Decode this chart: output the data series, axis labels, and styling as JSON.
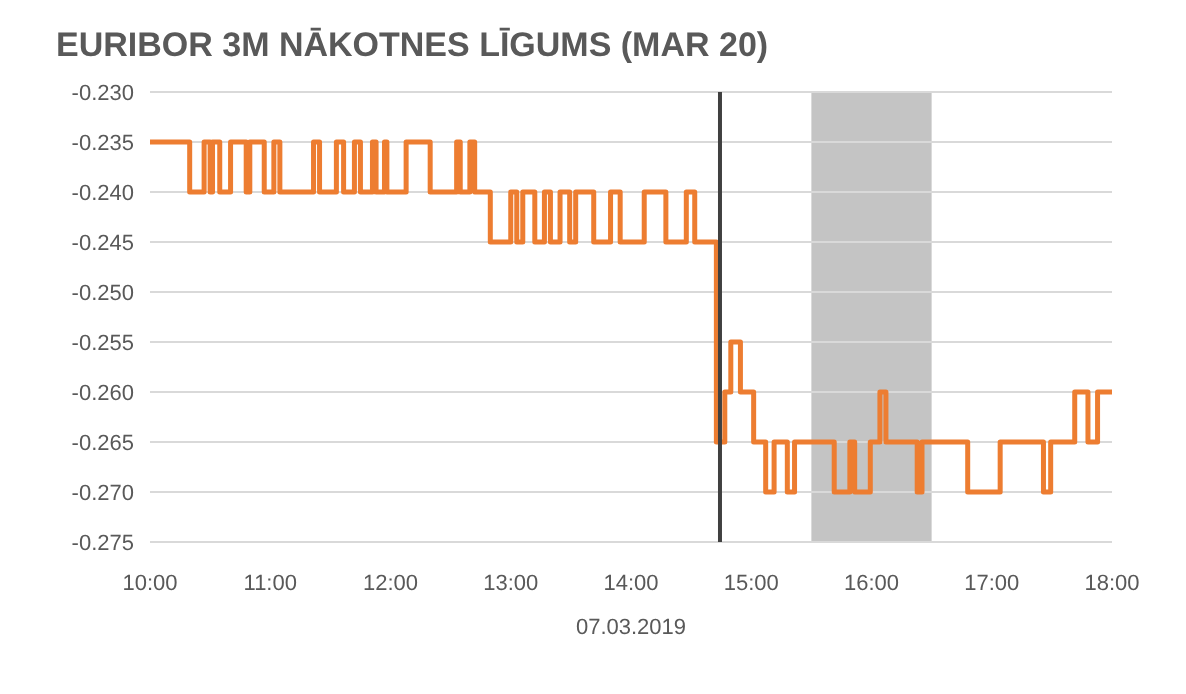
{
  "chart_data": {
    "type": "step",
    "title": "EURIBOR 3M NĀKOTNES LĪGUMS (MAR 20)",
    "xlabel": "07.03.2019",
    "x": [
      10.0,
      10.33,
      10.45,
      10.5,
      10.52,
      10.58,
      10.67,
      10.8,
      10.83,
      10.95,
      11.03,
      11.08,
      11.36,
      11.41,
      11.55,
      11.61,
      11.7,
      11.75,
      11.85,
      11.88,
      11.95,
      11.97,
      12.13,
      12.33,
      12.55,
      12.58,
      12.66,
      12.7,
      12.83,
      13.0,
      13.05,
      13.1,
      13.2,
      13.28,
      13.33,
      13.41,
      13.49,
      13.54,
      13.69,
      13.83,
      13.91,
      14.11,
      14.29,
      14.46,
      14.53,
      14.71,
      14.78,
      14.83,
      14.91,
      15.02,
      15.12,
      15.19,
      15.3,
      15.36,
      15.69,
      15.82,
      15.86,
      15.99,
      16.07,
      16.12,
      16.38,
      16.42,
      16.8,
      17.07,
      17.43,
      17.49,
      17.69,
      17.8,
      17.88,
      18.0
    ],
    "series": [
      {
        "color": "#ed7d31",
        "values": [
          -0.235,
          -0.24,
          -0.235,
          -0.24,
          -0.235,
          -0.24,
          -0.235,
          -0.24,
          -0.235,
          -0.24,
          -0.235,
          -0.24,
          -0.235,
          -0.24,
          -0.235,
          -0.24,
          -0.235,
          -0.24,
          -0.235,
          -0.24,
          -0.235,
          -0.24,
          -0.235,
          -0.24,
          -0.235,
          -0.24,
          -0.235,
          -0.24,
          -0.245,
          -0.24,
          -0.245,
          -0.24,
          -0.245,
          -0.24,
          -0.245,
          -0.24,
          -0.245,
          -0.24,
          -0.245,
          -0.24,
          -0.245,
          -0.24,
          -0.245,
          -0.24,
          -0.245,
          -0.265,
          -0.26,
          -0.255,
          -0.26,
          -0.265,
          -0.27,
          -0.265,
          -0.27,
          -0.265,
          -0.27,
          -0.265,
          -0.27,
          -0.265,
          -0.26,
          -0.265,
          -0.27,
          -0.265,
          -0.27,
          -0.265,
          -0.27,
          -0.265,
          -0.26,
          -0.265,
          -0.26,
          -0.26
        ]
      }
    ],
    "xlim": [
      10,
      18
    ],
    "xticks": [
      {
        "value": 10,
        "label": "10:00"
      },
      {
        "value": 11,
        "label": "11:00"
      },
      {
        "value": 12,
        "label": "12:00"
      },
      {
        "value": 13,
        "label": "13:00"
      },
      {
        "value": 14,
        "label": "14:00"
      },
      {
        "value": 15,
        "label": "15:00"
      },
      {
        "value": 16,
        "label": "16:00"
      },
      {
        "value": 17,
        "label": "17:00"
      },
      {
        "value": 18,
        "label": "18:00"
      }
    ],
    "ylim": [
      -0.275,
      -0.23
    ],
    "yticks": [
      {
        "value": -0.23,
        "label": "-0.230"
      },
      {
        "value": -0.235,
        "label": "-0.235"
      },
      {
        "value": -0.24,
        "label": "-0.240"
      },
      {
        "value": -0.245,
        "label": "-0.245"
      },
      {
        "value": -0.25,
        "label": "-0.250"
      },
      {
        "value": -0.255,
        "label": "-0.255"
      },
      {
        "value": -0.26,
        "label": "-0.260"
      },
      {
        "value": -0.265,
        "label": "-0.265"
      },
      {
        "value": -0.27,
        "label": "-0.270"
      },
      {
        "value": -0.275,
        "label": "-0.275"
      }
    ],
    "grid": "y",
    "ref_lines": [
      {
        "axis": "x",
        "value": 14.74,
        "color": "#404040"
      }
    ],
    "bands": [
      {
        "axis": "x",
        "from": 15.5,
        "to": 16.5,
        "color": "#c4c4c4"
      }
    ]
  }
}
